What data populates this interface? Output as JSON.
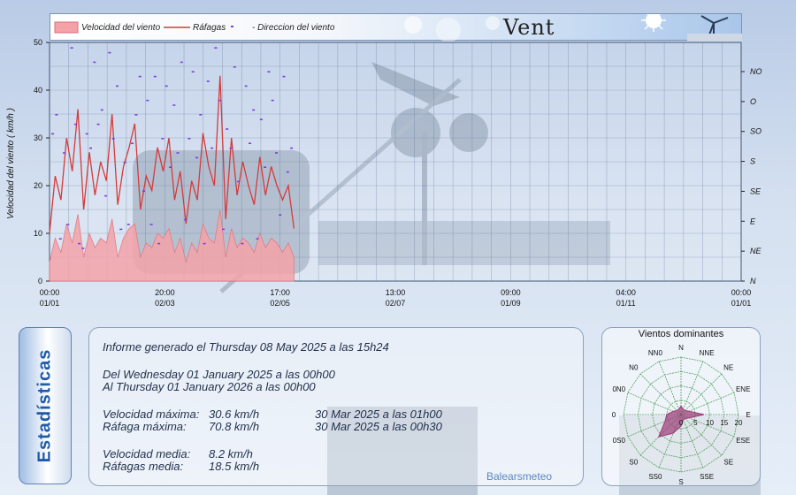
{
  "legend": {
    "speed_label": "Velocidad del viento",
    "gust_label": "Ráfagas",
    "dir_label": "Direccion del viento",
    "title": "Vent"
  },
  "colors": {
    "speed_fill": "#f3a2a8",
    "gust_line": "#d63a3a",
    "dir_point": "#7b3fe0",
    "grid": "#5a6f93",
    "rose_grid": "#55a060",
    "rose_fill": "#9d3a77"
  },
  "chart_data": [
    {
      "type": "line",
      "ylabel": "Velocidad del viento  ( km/h )",
      "ylim": [
        0,
        50
      ],
      "y_ticks": [
        0,
        10,
        20,
        30,
        40,
        50
      ],
      "x_ticks": [
        {
          "time": "00:00",
          "date": "01/01"
        },
        {
          "time": "20:00",
          "date": "02/03"
        },
        {
          "time": "17:00",
          "date": "02/05"
        },
        {
          "time": "13:00",
          "date": "02/07"
        },
        {
          "time": "09:00",
          "date": "01/09"
        },
        {
          "time": "04:00",
          "date": "01/11"
        },
        {
          "time": "00:00",
          "date": "01/01"
        }
      ],
      "xlim_days": [
        0,
        365
      ],
      "right_axis_labels": [
        "N",
        "NE",
        "E",
        "SE",
        "S",
        "SO",
        "O",
        "NO"
      ],
      "series": [
        {
          "name": "Ráfagas",
          "x_days": [
            0,
            3,
            6,
            9,
            12,
            15,
            18,
            21,
            24,
            27,
            30,
            33,
            36,
            39,
            42,
            45,
            48,
            51,
            54,
            57,
            60,
            63,
            66,
            69,
            72,
            75,
            78,
            81,
            84,
            87,
            90,
            93,
            96,
            99,
            102,
            105,
            108,
            111,
            114,
            117,
            120,
            123,
            126,
            129
          ],
          "values": [
            10,
            22,
            17,
            30,
            23,
            36,
            15,
            27,
            18,
            25,
            21,
            35,
            16,
            24,
            28,
            33,
            15,
            22,
            19,
            28,
            23,
            30,
            17,
            23,
            12,
            21,
            17,
            31,
            24,
            20,
            43,
            13,
            30,
            18,
            25,
            20,
            16,
            26,
            18,
            24,
            20,
            17,
            20,
            11
          ]
        },
        {
          "name": "Velocidad del viento",
          "x_days": [
            0,
            3,
            6,
            9,
            12,
            15,
            18,
            21,
            24,
            27,
            30,
            33,
            36,
            39,
            42,
            45,
            48,
            51,
            54,
            57,
            60,
            63,
            66,
            69,
            72,
            75,
            78,
            81,
            84,
            87,
            90,
            93,
            96,
            99,
            102,
            105,
            108,
            111,
            114,
            117,
            120,
            123,
            126,
            129
          ],
          "values": [
            4,
            9,
            6,
            12,
            8,
            14,
            5,
            10,
            7,
            9,
            8,
            13,
            5,
            9,
            11,
            12,
            5,
            8,
            7,
            10,
            9,
            11,
            6,
            9,
            4,
            8,
            6,
            12,
            9,
            8,
            15,
            5,
            11,
            7,
            9,
            8,
            6,
            10,
            7,
            9,
            8,
            6,
            8,
            5
          ]
        },
        {
          "name": "Direccion del viento",
          "x_days": [
            1,
            3,
            5,
            7,
            9,
            11,
            13,
            15,
            17,
            19,
            21,
            23,
            25,
            27,
            29,
            31,
            33,
            35,
            37,
            39,
            41,
            43,
            45,
            47,
            49,
            51,
            53,
            55,
            57,
            59,
            61,
            63,
            65,
            67,
            69,
            71,
            73,
            75,
            77,
            79,
            81,
            83,
            85,
            87,
            89,
            91,
            93,
            95,
            97,
            99,
            101,
            103,
            105,
            107,
            109,
            111,
            113,
            115,
            117,
            119,
            121,
            123,
            125,
            127
          ],
          "values": [
            31,
            35,
            9,
            27,
            12,
            49,
            33,
            8,
            7,
            31,
            28,
            46,
            33,
            36,
            18,
            48,
            30,
            41,
            11,
            25,
            12,
            29,
            35,
            43,
            19,
            38,
            12,
            43,
            8,
            30,
            41,
            24,
            37,
            27,
            46,
            13,
            30,
            44,
            26,
            35,
            8,
            42,
            28,
            49,
            38,
            11,
            32,
            28,
            45,
            21,
            8,
            41,
            29,
            36,
            9,
            34,
            24,
            44,
            38,
            27,
            14,
            43,
            23,
            28
          ]
        }
      ]
    },
    {
      "type": "radar",
      "title": "Vientos dominantes",
      "directions": [
        "N",
        "NNE",
        "NE",
        "ENE",
        "E",
        "ESE",
        "SE",
        "SSE",
        "S",
        "SS0",
        "S0",
        "0S0",
        "0",
        "0N0",
        "N0",
        "NN0"
      ],
      "radial_ticks": [
        0,
        5,
        10,
        15,
        20
      ],
      "values": [
        3,
        2,
        2,
        3,
        8,
        3,
        2,
        2,
        4,
        7,
        11,
        6,
        5,
        3,
        2,
        2
      ]
    }
  ],
  "stats": {
    "heading": "Estadísticas",
    "generated": "Informe generado el Thursday 08 May 2025 a las 15h24",
    "from": "Del Wednesday 01 January 2025 a las 00h00",
    "to": "Al Thursday 01 January 2026 a las 00h00",
    "rows": [
      {
        "label": "Velocidad máxima:",
        "value": "30.6 km/h",
        "when": "30 Mar 2025 a las 01h00"
      },
      {
        "label": "Ráfaga máxima:",
        "value": "70.8 km/h",
        "when": "30 Mar 2025 a las 00h30"
      },
      {
        "label": "Velocidad media:",
        "value": "8.2 km/h"
      },
      {
        "label": "Ráfagas media:",
        "value": "18.5 km/h"
      }
    ],
    "brand": "Balearsmeteo"
  }
}
